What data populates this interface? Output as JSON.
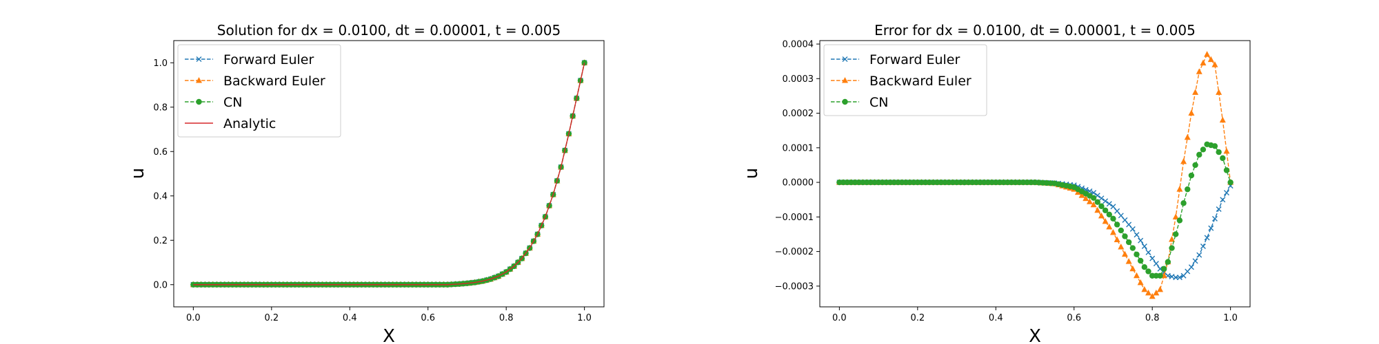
{
  "chart_data": [
    {
      "type": "line",
      "title": "Solution for dx = 0.0100, dt = 0.00001, t = 0.005",
      "xlabel": "X",
      "ylabel": "u",
      "xlim": [
        -0.05,
        1.05
      ],
      "ylim": [
        -0.1,
        1.1
      ],
      "xticks": [
        "0.0",
        "0.2",
        "0.4",
        "0.6",
        "0.8",
        "1.0"
      ],
      "yticks": [
        "0.0",
        "0.2",
        "0.4",
        "0.6",
        "0.8",
        "1.0"
      ],
      "grid": false,
      "legend_position": "upper-left",
      "x": [
        0.0,
        0.65,
        0.68,
        0.7,
        0.72,
        0.74,
        0.76,
        0.78,
        0.8,
        0.82,
        0.84,
        0.86,
        0.88,
        0.9,
        0.92,
        0.94,
        0.96,
        0.98,
        1.0
      ],
      "series": [
        {
          "name": "Forward Euler",
          "color": "#1f77b4",
          "style": "dashed",
          "marker": "x",
          "values": [
            0.0,
            0.0,
            0.003,
            0.006,
            0.01,
            0.016,
            0.025,
            0.038,
            0.057,
            0.083,
            0.118,
            0.165,
            0.227,
            0.306,
            0.406,
            0.53,
            0.68,
            0.84,
            1.0
          ]
        },
        {
          "name": "Backward Euler",
          "color": "#ff7f0e",
          "style": "dashed",
          "marker": "triangle",
          "values": [
            0.0,
            0.0,
            0.003,
            0.006,
            0.01,
            0.016,
            0.025,
            0.038,
            0.057,
            0.083,
            0.118,
            0.165,
            0.227,
            0.306,
            0.406,
            0.53,
            0.68,
            0.84,
            1.0
          ]
        },
        {
          "name": "CN",
          "color": "#2ca02c",
          "style": "dashed",
          "marker": "circle",
          "values": [
            0.0,
            0.0,
            0.003,
            0.006,
            0.01,
            0.016,
            0.025,
            0.038,
            0.057,
            0.083,
            0.118,
            0.165,
            0.227,
            0.306,
            0.406,
            0.53,
            0.68,
            0.84,
            1.0
          ]
        },
        {
          "name": "Analytic",
          "color": "#d62728",
          "style": "solid",
          "marker": "none",
          "values": [
            0.0,
            0.0,
            0.003,
            0.006,
            0.01,
            0.016,
            0.025,
            0.038,
            0.057,
            0.083,
            0.118,
            0.165,
            0.227,
            0.306,
            0.406,
            0.53,
            0.68,
            0.84,
            1.0
          ]
        }
      ]
    },
    {
      "type": "line",
      "title": "Error for dx = 0.0100, dt = 0.00001, t = 0.005",
      "xlabel": "X",
      "ylabel": "u",
      "xlim": [
        -0.05,
        1.05
      ],
      "ylim": [
        -0.00036,
        0.00041
      ],
      "xticks": [
        "0.0",
        "0.2",
        "0.4",
        "0.6",
        "0.8",
        "1.0"
      ],
      "yticks": [
        "−0.0003",
        "−0.0002",
        "−0.0001",
        "0.0000",
        "0.0001",
        "0.0002",
        "0.0003",
        "0.0004"
      ],
      "grid": false,
      "legend_position": "upper-left",
      "x": [
        0.0,
        0.5,
        0.55,
        0.6,
        0.65,
        0.7,
        0.75,
        0.78,
        0.8,
        0.82,
        0.84,
        0.86,
        0.87,
        0.88,
        0.9,
        0.92,
        0.94,
        0.96,
        0.98,
        1.0
      ],
      "series": [
        {
          "name": "Forward Euler",
          "color": "#1f77b4",
          "style": "dashed",
          "marker": "x",
          "values": [
            0.0,
            0.0,
            -2e-06,
            -8e-06,
            -3e-05,
            -7e-05,
            -0.000135,
            -0.000185,
            -0.00022,
            -0.00025,
            -0.00027,
            -0.000275,
            -0.000275,
            -0.00027,
            -0.000245,
            -0.00021,
            -0.00016,
            -0.000105,
            -5e-05,
            -1e-05
          ]
        },
        {
          "name": "Backward Euler",
          "color": "#ff7f0e",
          "style": "dashed",
          "marker": "triangle",
          "values": [
            0.0,
            0.0,
            -4e-06,
            -2e-05,
            -6.5e-05,
            -0.000145,
            -0.00025,
            -0.00031,
            -0.00033,
            -0.00031,
            -0.00023,
            -0.0001,
            -2e-05,
            6e-05,
            0.0002,
            0.00032,
            0.00037,
            0.00034,
            0.00018,
            0.0
          ]
        },
        {
          "name": "CN",
          "color": "#2ca02c",
          "style": "dashed",
          "marker": "circle",
          "values": [
            0.0,
            0.0,
            -3e-06,
            -1.4e-05,
            -4.5e-05,
            -0.000105,
            -0.00019,
            -0.000245,
            -0.00027,
            -0.00027,
            -0.00023,
            -0.00015,
            -0.00011,
            -6e-05,
            2e-05,
            8e-05,
            0.00011,
            0.000105,
            7e-05,
            0.0
          ]
        }
      ]
    }
  ]
}
